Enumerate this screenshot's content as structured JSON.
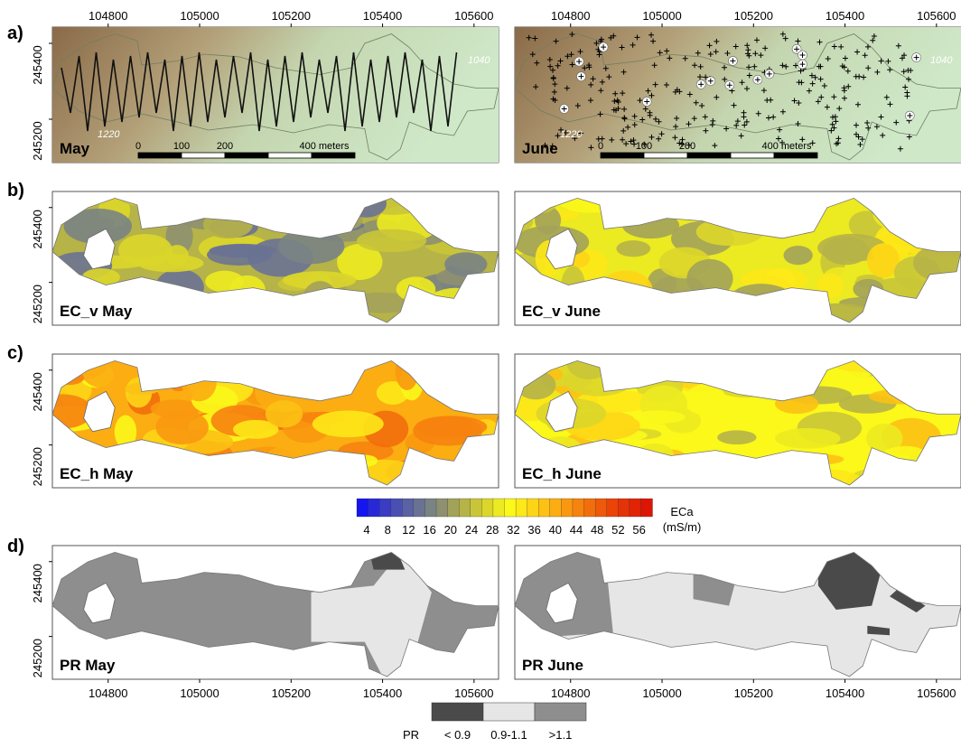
{
  "panels": {
    "a": {
      "letter": "a)",
      "left": "May",
      "right": "June"
    },
    "b": {
      "letter": "b)",
      "left": "EC_v May",
      "right": "EC_v June"
    },
    "c": {
      "letter": "c)",
      "left": "EC_h May",
      "right": "EC_h June"
    },
    "d": {
      "letter": "d)",
      "left": "PR May",
      "right": "PR June"
    }
  },
  "axes": {
    "x_ticks": [
      "104800",
      "105000",
      "105200",
      "105400",
      "105600"
    ],
    "y_ticks": [
      "245400",
      "245200"
    ]
  },
  "contours": {
    "upper": "1040",
    "lower": "1220"
  },
  "scalebar": {
    "labels": [
      "0",
      "100",
      "200",
      "400 meters"
    ]
  },
  "eca_legend": {
    "title": "ECa",
    "unit": "(mS/m)",
    "ticks": [
      "4",
      "8",
      "12",
      "16",
      "20",
      "24",
      "28",
      "32",
      "36",
      "40",
      "44",
      "48",
      "52",
      "56"
    ],
    "colors": [
      "#1515f0",
      "#2828d8",
      "#3a3cc4",
      "#4a4fb4",
      "#5a62a4",
      "#6a7294",
      "#7a8384",
      "#8e9070",
      "#a3a25a",
      "#b6b348",
      "#c9c538",
      "#dcd62a",
      "#ecea20",
      "#fbf81a",
      "#fde818",
      "#fdd516",
      "#fcc114",
      "#fbad12",
      "#f99810",
      "#f6830e",
      "#f26e0c",
      "#ee590a",
      "#ea4408",
      "#e43306",
      "#e02405",
      "#dd1504"
    ]
  },
  "pr_legend": {
    "title": "PR",
    "classes": [
      {
        "label": "< 0.9",
        "color": "#4a4a4a"
      },
      {
        "label": "0.9-1.1",
        "color": "#e6e6e6"
      },
      {
        "label": ">1.1",
        "color": "#8e8e8e"
      }
    ]
  },
  "colors": {
    "terrain_dark": "#8a6a48",
    "terrain_light": "#cfe8c8",
    "pr_dark": "#4a4a4a",
    "pr_light": "#e6e6e6",
    "pr_mid": "#8e8e8e"
  }
}
